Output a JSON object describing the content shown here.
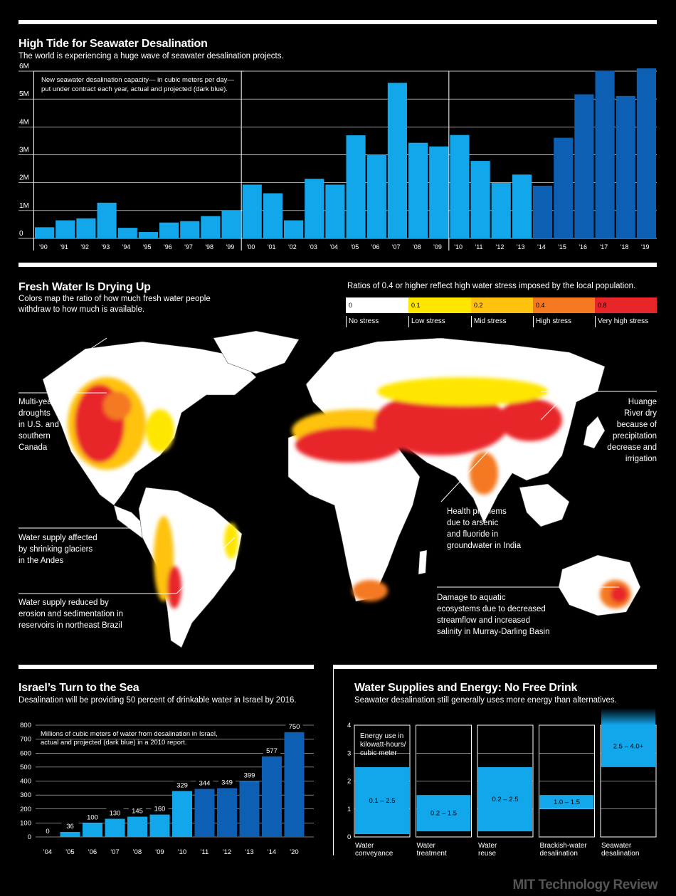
{
  "section1": {
    "title": "High Tide for Seawater Desalination",
    "subtitle": "The world is experiencing a huge wave of seawater desalination projects.",
    "note_line1": "New seawater desalination capacity— in cubic meters per day—",
    "note_line2": "put under contract each year, actual and projected (dark blue)."
  },
  "section2": {
    "title": "Fresh Water Is Drying Up",
    "subtitle_line1": "Colors map the ratio of how much fresh water people",
    "subtitle_line2": "withdraw to how much is available.",
    "legend_title": "Ratios of 0.4 or higher reflect high water stress imposed by the local population.",
    "legend": [
      {
        "value": "0",
        "label": "No stress",
        "color": "#ffffff"
      },
      {
        "value": "0.1",
        "label": "Low stress",
        "color": "#ffe600"
      },
      {
        "value": "0.2",
        "label": "Mid stress",
        "color": "#ffc20e"
      },
      {
        "value": "0.4",
        "label": "High stress",
        "color": "#f47920"
      },
      {
        "value": "0.8",
        "label": "Very high stress",
        "color": "#e8262a"
      }
    ],
    "annotations": {
      "us": [
        "Multi-year",
        "droughts",
        "in U.S. and",
        "southern",
        "Canada"
      ],
      "andes": [
        "Water supply affected",
        "by shrinking glaciers",
        "in the Andes"
      ],
      "brazil": [
        "Water supply reduced by",
        "erosion and sedimentation in",
        "reservoirs in northeast Brazil"
      ],
      "huange": [
        "Huange",
        "River dry",
        "because of",
        "precipitation",
        "decrease and",
        "irrigation"
      ],
      "india": [
        "Health problems",
        "due to arsenic",
        "and fluoride in",
        "groundwater in India"
      ],
      "murray": [
        "Damage to aquatic",
        "ecosystems due to decreased",
        "streamflow and increased",
        "salinity in Murray-Darling Basin"
      ]
    }
  },
  "section3": {
    "title": "Israel’s Turn to the Sea",
    "subtitle": "Desalination will be providing 50 percent of drinkable water in Israel by 2016.",
    "note_line1": "Millions of cubic meters of water from desalination in Israel,",
    "note_line2": "actual and projected (dark blue) in a 2010 report."
  },
  "section4": {
    "title": "Water Supplies and Energy: No Free Drink",
    "subtitle": "Seawater desalination still generally uses more energy than alternatives.",
    "note_lines": [
      "Energy use in",
      "kilowatt-hours/",
      "cubic meter"
    ]
  },
  "brand": "MIT Technology Review",
  "colors": {
    "light_blue": "#12a6ea",
    "dark_blue": "#0d5fb3",
    "bg": "#000000"
  },
  "chart_data": [
    {
      "type": "bar",
      "title": "High Tide for Seawater Desalination",
      "ylabel": "cubic meters per day",
      "ylim": [
        0,
        6000000
      ],
      "ytick_labels": [
        "0",
        "1M",
        "2M",
        "3M",
        "4M",
        "5M",
        "6M"
      ],
      "categories": [
        "'90",
        "'91",
        "'92",
        "'93",
        "'94",
        "'95",
        "'96",
        "'97",
        "'98",
        "'99",
        "'00",
        "'01",
        "'02",
        "'03",
        "'04",
        "'05",
        "'06",
        "'07",
        "'08",
        "'09",
        "'10",
        "'11",
        "'12",
        "'13",
        "'14",
        "'15",
        "'16",
        "'17",
        "'18",
        "'19"
      ],
      "values": [
        400000,
        650000,
        720000,
        1280000,
        380000,
        230000,
        570000,
        620000,
        800000,
        1000000,
        1930000,
        1620000,
        650000,
        2140000,
        1930000,
        3700000,
        3010000,
        5580000,
        3430000,
        3300000,
        3710000,
        2780000,
        1990000,
        2290000,
        1890000,
        3610000,
        5170000,
        6020000,
        5110000,
        6100000
      ],
      "projected_from_index": 24
    },
    {
      "type": "bar",
      "title": "Israel’s Turn to the Sea",
      "ylabel": "Millions of cubic meters",
      "ylim": [
        0,
        800
      ],
      "ytick_labels": [
        "0",
        "100",
        "200",
        "300",
        "400",
        "500",
        "600",
        "700",
        "800"
      ],
      "categories": [
        "'04",
        "'05",
        "'06",
        "'07",
        "'08",
        "'09",
        "'10",
        "'11",
        "'12",
        "'13",
        "'14",
        "'20"
      ],
      "values": [
        0,
        36,
        100,
        130,
        145,
        160,
        329,
        344,
        349,
        399,
        577,
        750
      ],
      "value_labels": [
        "0",
        "36",
        "100",
        "130",
        "145",
        "160",
        "329",
        "344",
        "349",
        "399",
        "577",
        "750"
      ],
      "projected_from_index": 7
    },
    {
      "type": "bar",
      "title": "Water Supplies and Energy: No Free Drink",
      "ylabel": "kilowatt-hours/cubic meter",
      "ylim": [
        0,
        4
      ],
      "ytick_labels": [
        "0",
        "1",
        "2",
        "3",
        "4"
      ],
      "categories": [
        [
          "Water",
          "conveyance"
        ],
        [
          "Water",
          "treatment"
        ],
        [
          "Water",
          "reuse"
        ],
        [
          "Brackish-water",
          "desalination"
        ],
        [
          "Seawater",
          "desalination"
        ]
      ],
      "ranges": [
        [
          0.1,
          2.5
        ],
        [
          0.2,
          1.5
        ],
        [
          0.2,
          2.5
        ],
        [
          1.0,
          1.5
        ],
        [
          2.5,
          4.0
        ]
      ],
      "range_labels": [
        "0.1 – 2.5",
        "0.2 – 1.5",
        "0.2 – 2.5",
        "1.0 – 1.5",
        "2.5 – 4.0+"
      ]
    }
  ]
}
